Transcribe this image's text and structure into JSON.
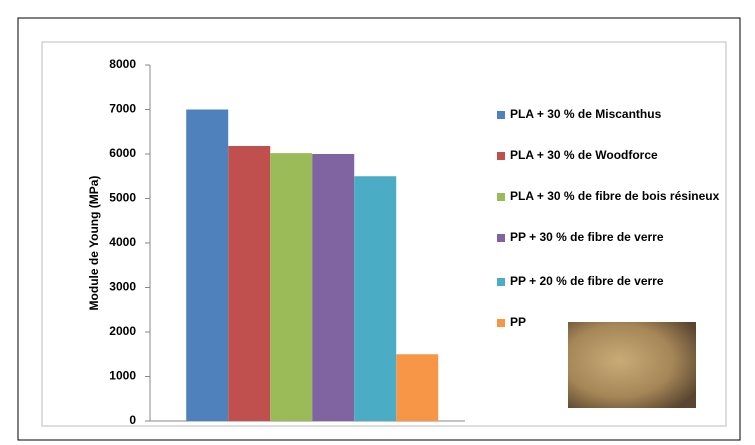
{
  "chart_data": {
    "type": "bar",
    "y_label": "Module de Young (MPa)",
    "categories": [
      null
    ],
    "series": [
      {
        "name": "PLA + 30 % de Miscanthus",
        "color": "#4f81bd",
        "values": [
          7000
        ]
      },
      {
        "name": "PLA + 30 % de Woodforce",
        "color": "#c0504d",
        "values": [
          6180
        ]
      },
      {
        "name": "PLA + 30 % de fibre de bois résineux",
        "color": "#9bbb59",
        "values": [
          6020
        ]
      },
      {
        "name": "PP + 30 % de fibre de verre",
        "color": "#8064a2",
        "values": [
          6000
        ]
      },
      {
        "name": "PP + 20 % de fibre de verre",
        "color": "#4bacc6",
        "values": [
          5500
        ]
      },
      {
        "name": "PP",
        "color": "#f79646",
        "values": [
          1500
        ]
      }
    ],
    "ylim": [
      0,
      8000
    ],
    "yticks": [
      0,
      1000,
      2000,
      3000,
      4000,
      5000,
      6000,
      7000,
      8000
    ]
  }
}
